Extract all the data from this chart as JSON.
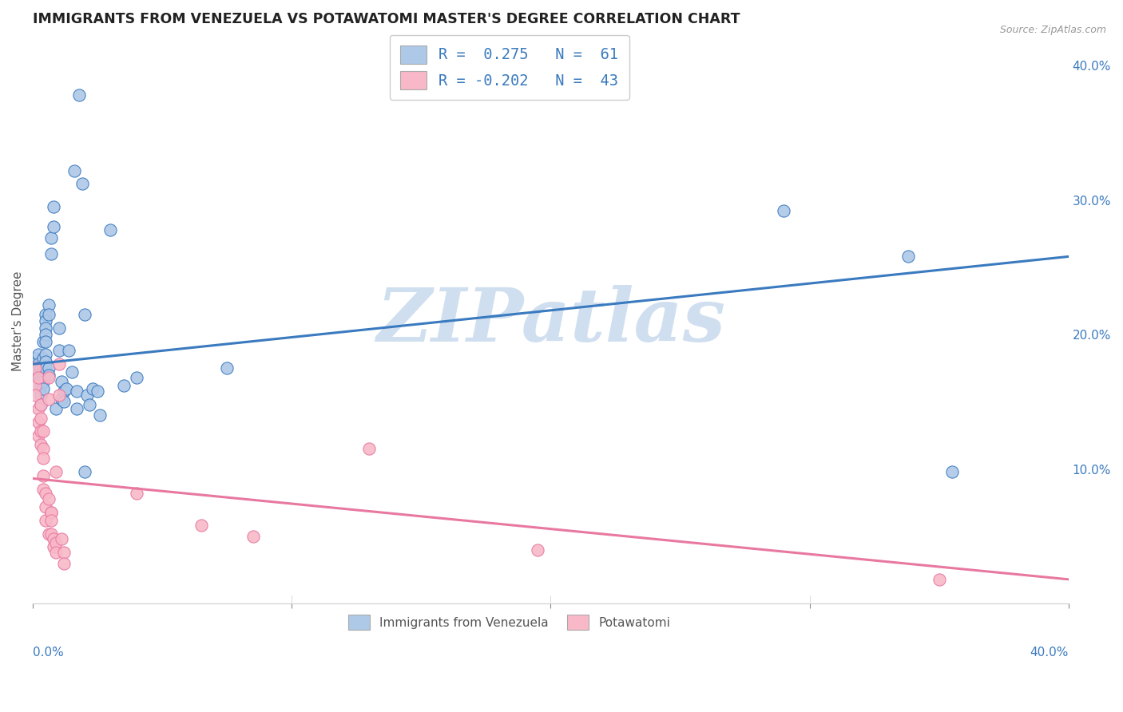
{
  "title": "IMMIGRANTS FROM VENEZUELA VS POTAWATOMI MASTER'S DEGREE CORRELATION CHART",
  "source": "Source: ZipAtlas.com",
  "ylabel": "Master's Degree",
  "legend_blue_R": "0.275",
  "legend_blue_N": "61",
  "legend_pink_R": "-0.202",
  "legend_pink_N": "43",
  "legend_label1": "Immigrants from Venezuela",
  "legend_label2": "Potawatomi",
  "watermark": "ZIPatlas",
  "xlim": [
    0.0,
    0.4
  ],
  "ylim": [
    0.0,
    0.42
  ],
  "blue_scatter": [
    [
      0.001,
      0.182
    ],
    [
      0.001,
      0.178
    ],
    [
      0.002,
      0.185
    ],
    [
      0.002,
      0.17
    ],
    [
      0.002,
      0.178
    ],
    [
      0.003,
      0.175
    ],
    [
      0.003,
      0.168
    ],
    [
      0.003,
      0.162
    ],
    [
      0.003,
      0.155
    ],
    [
      0.003,
      0.148
    ],
    [
      0.004,
      0.195
    ],
    [
      0.004,
      0.182
    ],
    [
      0.004,
      0.175
    ],
    [
      0.004,
      0.168
    ],
    [
      0.004,
      0.165
    ],
    [
      0.004,
      0.16
    ],
    [
      0.005,
      0.215
    ],
    [
      0.005,
      0.21
    ],
    [
      0.005,
      0.205
    ],
    [
      0.005,
      0.2
    ],
    [
      0.005,
      0.195
    ],
    [
      0.005,
      0.185
    ],
    [
      0.005,
      0.18
    ],
    [
      0.005,
      0.175
    ],
    [
      0.006,
      0.222
    ],
    [
      0.006,
      0.215
    ],
    [
      0.006,
      0.175
    ],
    [
      0.006,
      0.17
    ],
    [
      0.007,
      0.272
    ],
    [
      0.007,
      0.26
    ],
    [
      0.008,
      0.295
    ],
    [
      0.008,
      0.28
    ],
    [
      0.009,
      0.145
    ],
    [
      0.01,
      0.205
    ],
    [
      0.01,
      0.188
    ],
    [
      0.011,
      0.152
    ],
    [
      0.011,
      0.165
    ],
    [
      0.012,
      0.158
    ],
    [
      0.012,
      0.15
    ],
    [
      0.013,
      0.16
    ],
    [
      0.014,
      0.188
    ],
    [
      0.015,
      0.172
    ],
    [
      0.016,
      0.322
    ],
    [
      0.017,
      0.158
    ],
    [
      0.017,
      0.145
    ],
    [
      0.018,
      0.378
    ],
    [
      0.019,
      0.312
    ],
    [
      0.02,
      0.215
    ],
    [
      0.02,
      0.098
    ],
    [
      0.021,
      0.155
    ],
    [
      0.022,
      0.148
    ],
    [
      0.023,
      0.16
    ],
    [
      0.025,
      0.158
    ],
    [
      0.026,
      0.14
    ],
    [
      0.03,
      0.278
    ],
    [
      0.035,
      0.162
    ],
    [
      0.04,
      0.168
    ],
    [
      0.075,
      0.175
    ],
    [
      0.29,
      0.292
    ],
    [
      0.338,
      0.258
    ],
    [
      0.355,
      0.098
    ]
  ],
  "pink_scatter": [
    [
      0.001,
      0.162
    ],
    [
      0.001,
      0.175
    ],
    [
      0.001,
      0.155
    ],
    [
      0.002,
      0.145
    ],
    [
      0.002,
      0.135
    ],
    [
      0.002,
      0.125
    ],
    [
      0.002,
      0.168
    ],
    [
      0.003,
      0.138
    ],
    [
      0.003,
      0.128
    ],
    [
      0.003,
      0.118
    ],
    [
      0.003,
      0.148
    ],
    [
      0.004,
      0.128
    ],
    [
      0.004,
      0.115
    ],
    [
      0.004,
      0.108
    ],
    [
      0.004,
      0.095
    ],
    [
      0.004,
      0.085
    ],
    [
      0.005,
      0.082
    ],
    [
      0.005,
      0.072
    ],
    [
      0.005,
      0.062
    ],
    [
      0.006,
      0.052
    ],
    [
      0.006,
      0.168
    ],
    [
      0.006,
      0.152
    ],
    [
      0.006,
      0.078
    ],
    [
      0.007,
      0.068
    ],
    [
      0.007,
      0.068
    ],
    [
      0.007,
      0.062
    ],
    [
      0.007,
      0.052
    ],
    [
      0.008,
      0.048
    ],
    [
      0.008,
      0.042
    ],
    [
      0.009,
      0.098
    ],
    [
      0.009,
      0.045
    ],
    [
      0.009,
      0.038
    ],
    [
      0.01,
      0.178
    ],
    [
      0.01,
      0.155
    ],
    [
      0.011,
      0.048
    ],
    [
      0.012,
      0.038
    ],
    [
      0.012,
      0.03
    ],
    [
      0.04,
      0.082
    ],
    [
      0.065,
      0.058
    ],
    [
      0.085,
      0.05
    ],
    [
      0.13,
      0.115
    ],
    [
      0.195,
      0.04
    ],
    [
      0.35,
      0.018
    ]
  ],
  "blue_line_x": [
    0.0,
    0.4
  ],
  "blue_line_y": [
    0.178,
    0.258
  ],
  "pink_line_x": [
    0.0,
    0.4
  ],
  "pink_line_y": [
    0.093,
    0.018
  ],
  "blue_color": "#aec8e8",
  "pink_color": "#f8b8c8",
  "blue_line_color": "#3a7abf",
  "pink_line_color": "#e878a0",
  "grid_color": "#cccccc",
  "background_color": "#ffffff",
  "title_fontsize": 12.5,
  "axis_label_fontsize": 11,
  "tick_fontsize": 11,
  "right_yticks": [
    0.1,
    0.2,
    0.3,
    0.4
  ],
  "right_yticklabels": [
    "10.0%",
    "20.0%",
    "30.0%",
    "40.0%"
  ],
  "watermark_color": "#d0dff0",
  "watermark_fontsize": 68,
  "scatter_size": 120
}
